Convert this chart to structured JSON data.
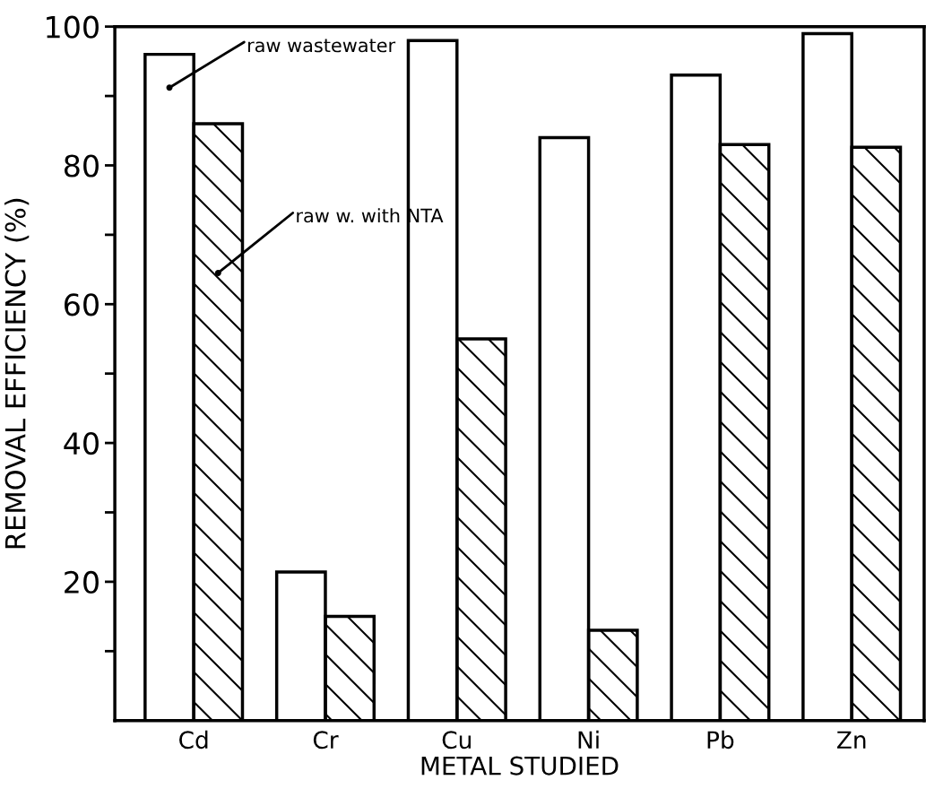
{
  "chart_data": {
    "type": "bar",
    "xlabel": "METAL STUDIED",
    "ylabel": "REMOVAL EFFICIENCY (%)",
    "categories": [
      "Cd",
      "Cr",
      "Cu",
      "Ni",
      "Pb",
      "Zn"
    ],
    "series": [
      {
        "name": "raw wastewater",
        "color": "#ffffff",
        "values": [
          96,
          21.4,
          98,
          84,
          93,
          99
        ]
      },
      {
        "name": "raw w. with NTA",
        "color": "#000000",
        "values": [
          86,
          15,
          55,
          13,
          83,
          82.6
        ]
      }
    ],
    "ylim": [
      0,
      100
    ],
    "yticks": [
      {
        "value": 10,
        "label": null
      },
      20,
      {
        "value": 30,
        "label": null
      },
      40,
      {
        "value": 50,
        "label": null
      },
      60,
      {
        "value": 70,
        "label": null
      },
      80,
      {
        "value": 90,
        "label": null
      },
      100
    ],
    "grid": false,
    "legend": false
  }
}
